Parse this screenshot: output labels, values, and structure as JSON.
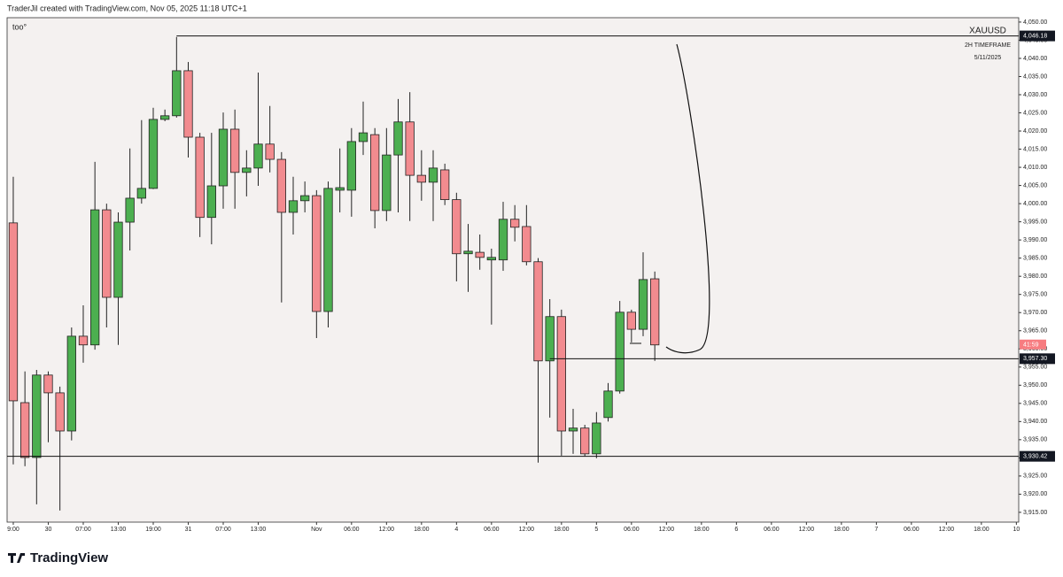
{
  "header": {
    "credit": "TraderJil created with TradingView.com, Nov 05, 2025 11:18 UTC+1",
    "logo": "TradingView"
  },
  "chart_data": {
    "type": "candlestick",
    "note_text": "too°",
    "symbol": "XAUUSD",
    "timeframe": "2H TIMEFRAME",
    "date": "5/11/2025",
    "countdown": "41:59",
    "up_color": "#4caf50",
    "down_color": "#f28b8f",
    "open": [
      3994.7,
      3945.2,
      3930.1,
      3952.8,
      3947.9,
      3937.4,
      3963.5,
      3961.1,
      3998.3,
      3974.2,
      3994.9,
      4001.5,
      4004.2,
      4023.2,
      4024.2,
      4036.6,
      4018.3,
      3996.2,
      4004.9,
      4020.5,
      4008.6,
      4009.8,
      4016.4,
      4012.2,
      3997.6,
      4000.8,
      4002.2,
      3970.3,
      4003.7,
      4003.7,
      4017.1,
      4019.0,
      3998.1,
      4013.4,
      4022.5,
      4007.8,
      4005.9,
      4009.3,
      4001.1,
      3986.2,
      3986.6,
      3984.5,
      3984.5,
      3995.7,
      3993.7,
      3984.0,
      3956.7,
      3968.9,
      3937.4,
      3938.2,
      3931.1,
      3941.1,
      3948.4,
      3970.1,
      3965.4,
      3979.3
    ],
    "high": [
      4007.4,
      3953.8,
      3954.2,
      3953.8,
      3949.6,
      3965.9,
      3972.0,
      4011.5,
      4000.0,
      3997.6,
      4015.2,
      4023.0,
      4026.4,
      4025.9,
      4045.9,
      4039.0,
      4019.5,
      4019.5,
      4025.1,
      4025.9,
      4014.7,
      4036.1,
      4026.9,
      4014.2,
      4007.4,
      4006.1,
      4003.7,
      4006.1,
      4015.2,
      4020.8,
      4028.1,
      4020.8,
      4020.8,
      4028.8,
      4030.7,
      4014.7,
      4014.7,
      4011.0,
      4003.0,
      3994.4,
      3991.5,
      3987.6,
      4000.5,
      3999.6,
      3999.6,
      3985.0,
      3973.7,
      3970.8,
      3943.5,
      3939.1,
      3942.6,
      3950.6,
      3973.2,
      3970.8,
      3986.6,
      3981.3
    ],
    "low": [
      3928.2,
      3927.7,
      3917.2,
      3934.3,
      3915.5,
      3934.8,
      3956.2,
      3959.8,
      3965.9,
      3961.1,
      3987.1,
      4000.0,
      4004.0,
      4022.7,
      4023.7,
      4012.7,
      3990.8,
      3988.8,
      3998.6,
      3998.6,
      4002.0,
      4004.9,
      4008.6,
      3972.8,
      3991.5,
      3997.6,
      3963.0,
      3965.9,
      3997.6,
      3996.4,
      4013.4,
      3993.2,
      3995.2,
      3997.6,
      3995.2,
      4000.8,
      3995.2,
      3999.6,
      3978.6,
      3975.7,
      3981.8,
      3966.7,
      3981.5,
      3989.6,
      3983.0,
      3928.7,
      3941.1,
      3930.6,
      3931.1,
      3930.4,
      3929.9,
      3940.0,
      3947.7,
      3961.8,
      3963.5,
      3956.7
    ],
    "close": [
      3945.7,
      3930.1,
      3952.8,
      3947.9,
      3937.4,
      3963.5,
      3961.1,
      3998.3,
      3974.2,
      3994.9,
      4001.5,
      4004.2,
      4023.2,
      4024.2,
      4036.6,
      4018.3,
      3996.2,
      4004.9,
      4020.5,
      4008.6,
      4009.8,
      4016.4,
      4012.2,
      3997.6,
      4000.8,
      4002.2,
      3970.3,
      4004.2,
      4004.4,
      4017.1,
      4019.5,
      3998.1,
      4013.4,
      4022.5,
      4007.8,
      4005.9,
      4009.8,
      4001.1,
      3986.2,
      3986.9,
      3985.2,
      3985.2,
      3995.7,
      3993.5,
      3984.0,
      3956.7,
      3968.9,
      3937.4,
      3938.2,
      3931.1,
      3939.6,
      3948.4,
      3970.1,
      3965.4,
      3979.1,
      3961.1
    ],
    "levels": [
      {
        "value": 4046.18,
        "label": "4,046.18",
        "start": 14
      },
      {
        "value": 3957.3,
        "label": "3,957.30",
        "start": 46
      },
      {
        "value": 3930.42,
        "label": "3,930.42"
      }
    ],
    "xlim": [
      -0.53,
      86.2
    ],
    "xticks": [
      {
        "value": 0,
        "label": "9:00"
      },
      {
        "value": 3,
        "label": "30"
      },
      {
        "value": 6,
        "label": "07:00"
      },
      {
        "value": 9,
        "label": "13:00"
      },
      {
        "value": 12,
        "label": "19:00"
      },
      {
        "value": 15,
        "label": "31"
      },
      {
        "value": 18,
        "label": "07:00"
      },
      {
        "value": 21,
        "label": "13:00"
      },
      {
        "value": 26,
        "label": "Nov"
      },
      {
        "value": 29,
        "label": "06:00"
      },
      {
        "value": 32,
        "label": "12:00"
      },
      {
        "value": 35,
        "label": "18:00"
      },
      {
        "value": 38,
        "label": "4"
      },
      {
        "value": 41,
        "label": "06:00"
      },
      {
        "value": 44,
        "label": "12:00"
      },
      {
        "value": 47,
        "label": "18:00"
      },
      {
        "value": 50,
        "label": "5"
      },
      {
        "value": 53,
        "label": "06:00"
      },
      {
        "value": 56,
        "label": "12:00"
      },
      {
        "value": 59,
        "label": "18:00"
      },
      {
        "value": 62,
        "label": "6"
      },
      {
        "value": 65,
        "label": "06:00"
      },
      {
        "value": 68,
        "label": "12:00"
      },
      {
        "value": 71,
        "label": "18:00"
      },
      {
        "value": 74,
        "label": "7"
      },
      {
        "value": 77,
        "label": "06:00"
      },
      {
        "value": 80,
        "label": "12:00"
      },
      {
        "value": 83,
        "label": "18:00"
      },
      {
        "value": 86,
        "label": "10"
      }
    ],
    "ylim": [
      3912.3,
      4051.2
    ],
    "yticks": [
      {
        "value": 4050,
        "label": "4,050.00"
      },
      {
        "value": 4045,
        "label": "4,045.00"
      },
      {
        "value": 4040,
        "label": "4,040.00"
      },
      {
        "value": 4035,
        "label": "4,035.00"
      },
      {
        "value": 4030,
        "label": "4,030.00"
      },
      {
        "value": 4025,
        "label": "4,025.00"
      },
      {
        "value": 4020,
        "label": "4,020.00"
      },
      {
        "value": 4015,
        "label": "4,015.00"
      },
      {
        "value": 4010,
        "label": "4,010.00"
      },
      {
        "value": 4005,
        "label": "4,005.00"
      },
      {
        "value": 4000,
        "label": "4,000.00"
      },
      {
        "value": 3995,
        "label": "3,995.00"
      },
      {
        "value": 3990,
        "label": "3,990.00"
      },
      {
        "value": 3985,
        "label": "3,985.00"
      },
      {
        "value": 3980,
        "label": "3,980.00"
      },
      {
        "value": 3975,
        "label": "3,975.00"
      },
      {
        "value": 3970,
        "label": "3,970.00"
      },
      {
        "value": 3965,
        "label": "3,965.00"
      },
      {
        "value": 3960,
        "label": "3,960.00"
      },
      {
        "value": 3955,
        "label": "3,955.00"
      },
      {
        "value": 3950,
        "label": "3,950.00"
      },
      {
        "value": 3945,
        "label": "3,945.00"
      },
      {
        "value": 3940,
        "label": "3,940.00"
      },
      {
        "value": 3935,
        "label": "3,935.00"
      },
      {
        "value": 3930,
        "label": "3,930.00"
      },
      {
        "value": 3925,
        "label": "3,925.00"
      },
      {
        "value": 3920,
        "label": "3,920.00"
      },
      {
        "value": 3915,
        "label": "3,915.00"
      }
    ]
  }
}
